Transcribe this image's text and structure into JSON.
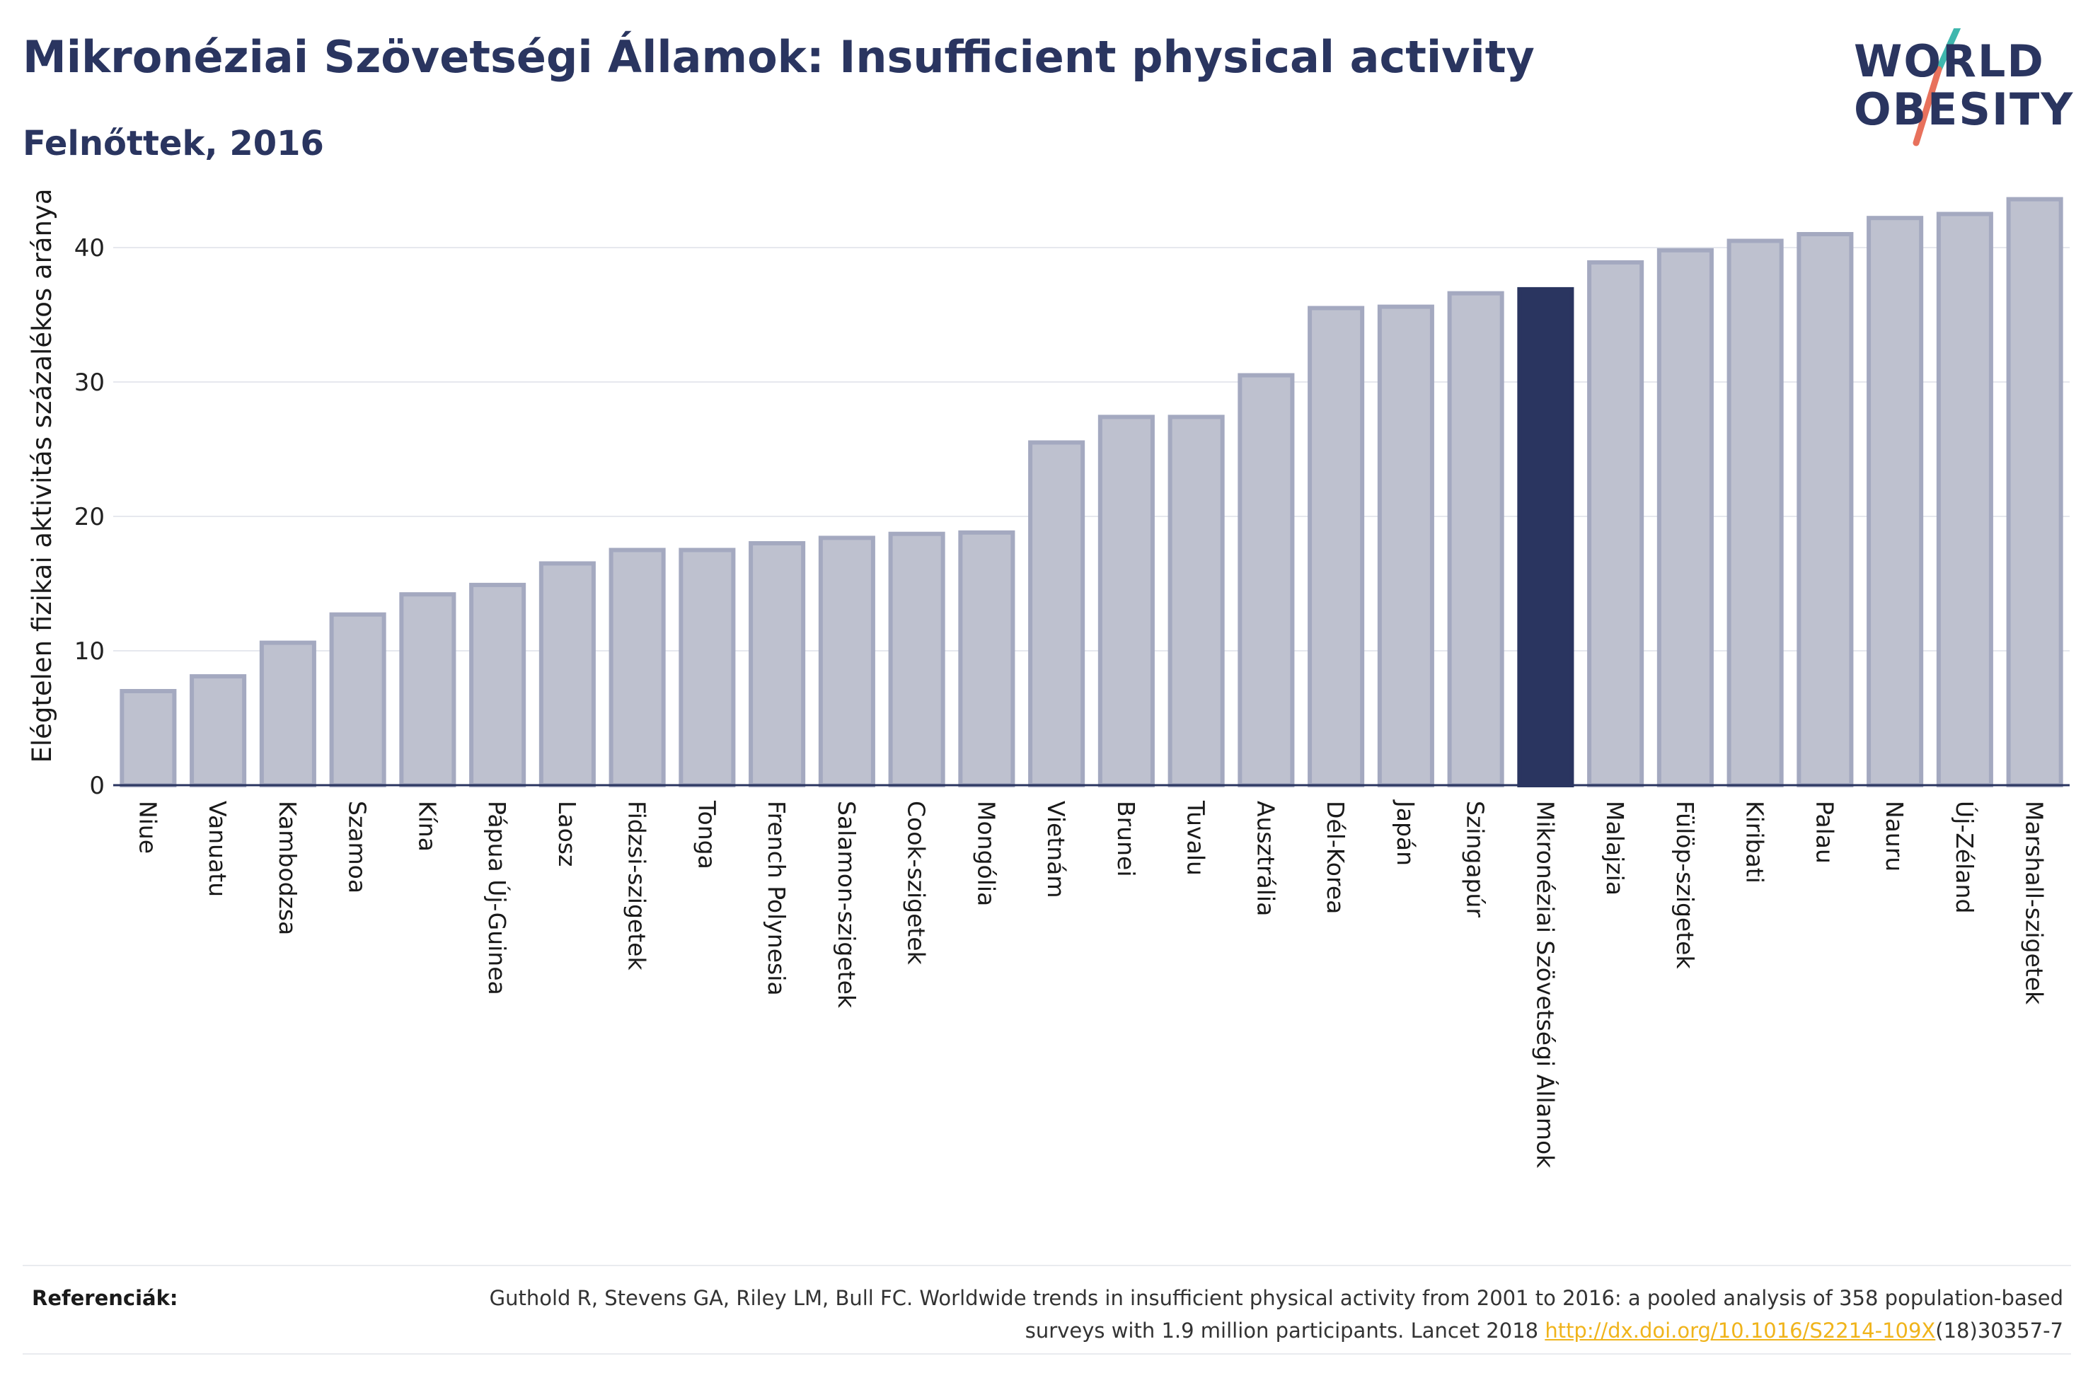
{
  "header": {
    "title": "Mikronéziai Szövetségi Államok: Insufficient physical activity",
    "subtitle": "Felnőttek, 2016"
  },
  "logo": {
    "line1": "WORLD",
    "line2": "OBESITY",
    "slash_color_top": "#3fb7ae",
    "slash_color_bottom": "#e8715c"
  },
  "colors": {
    "bar": "#bec1cf",
    "bar_stroke": "#a4a9c0",
    "highlight": "#2a3560",
    "axis": "#2a3560",
    "grid": "#e6e8ee"
  },
  "chart_data": {
    "type": "bar",
    "title": "Mikronéziai Szövetségi Államok: Insufficient physical activity",
    "subtitle": "Felnőttek, 2016",
    "xlabel": "",
    "ylabel": "Elégtelen fizikai aktivitás százalékos aránya",
    "ylim": [
      0,
      45
    ],
    "yticks": [
      0,
      10,
      20,
      30,
      40
    ],
    "grid": true,
    "highlight": "Mikronéziai Szövetségi Államok",
    "categories": [
      "Niue",
      "Vanuatu",
      "Kambodzsa",
      "Szamoa",
      "Kína",
      "Pápua Új-Guinea",
      "Laosz",
      "Fidzsi-szigetek",
      "Tonga",
      "French Polynesia",
      "Salamon-szigetek",
      "Cook-szigetek",
      "Mongólia",
      "Vietnám",
      "Brunei",
      "Tuvalu",
      "Ausztrália",
      "Dél-Korea",
      "Japán",
      "Szingapúr",
      "Mikronéziai Szövetségi Államok",
      "Malajzia",
      "Fülöp-szigetek",
      "Kiribati",
      "Palau",
      "Nauru",
      "Új-Zéland",
      "Marshall-szigetek"
    ],
    "values": [
      7.0,
      8.1,
      10.6,
      12.7,
      14.2,
      14.9,
      16.5,
      17.5,
      17.5,
      18.0,
      18.4,
      18.7,
      18.8,
      25.5,
      27.4,
      27.4,
      30.5,
      35.5,
      35.6,
      36.6,
      36.9,
      38.9,
      39.8,
      40.5,
      41.0,
      42.2,
      42.5,
      43.6
    ]
  },
  "footer": {
    "label": "Referenciák:",
    "reference": "Guthold R, Stevens GA, Riley LM, Bull FC. Worldwide trends in insufficient physical activity from 2001 to 2016: a pooled analysis of 358 population-based surveys with 1.9 million participants. Lancet 2018 ",
    "link": "http://dx.doi.org/10.1016/S2214-109X",
    "reference_tail": "(18)30357-7"
  }
}
